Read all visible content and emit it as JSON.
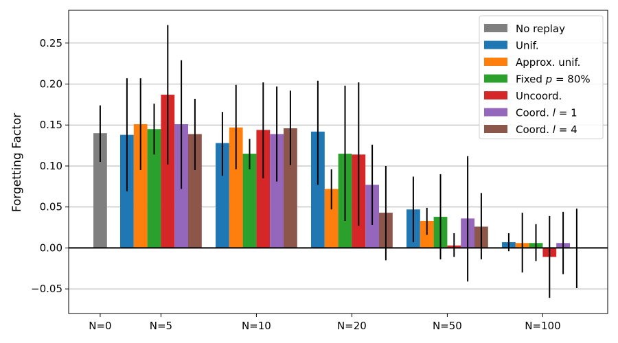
{
  "chart_data": {
    "type": "bar",
    "ylabel": "Forgetting Factor",
    "xlabel": "",
    "ylim": [
      -0.08,
      0.29
    ],
    "yticks": [
      -0.05,
      0.0,
      0.05,
      0.1,
      0.15,
      0.2,
      0.25
    ],
    "ytick_labels": [
      "−0.05",
      "0.00",
      "0.05",
      "0.10",
      "0.15",
      "0.20",
      "0.25"
    ],
    "grid": "horizontal",
    "zero_line": true,
    "legend_position": "top-right",
    "categories": [
      "N=0",
      "N=5",
      "N=10",
      "N=20",
      "N=50",
      "N=100"
    ],
    "series": [
      {
        "name": "No replay",
        "color": "#7f7f7f",
        "values": [
          0.14,
          null,
          null,
          null,
          null,
          null
        ],
        "err_low": [
          0.105,
          null,
          null,
          null,
          null,
          null
        ],
        "err_high": [
          0.174,
          null,
          null,
          null,
          null,
          null
        ]
      },
      {
        "name": "Unif.",
        "color": "#1f77b4",
        "values": [
          null,
          0.138,
          0.128,
          0.142,
          0.047,
          0.007
        ],
        "err_low": [
          null,
          0.069,
          0.088,
          0.077,
          0.007,
          -0.004
        ],
        "err_high": [
          null,
          0.207,
          0.166,
          0.204,
          0.087,
          0.018
        ]
      },
      {
        "name": "Approx. unif.",
        "color": "#ff7f0e",
        "values": [
          null,
          0.151,
          0.147,
          0.072,
          0.033,
          0.006
        ],
        "err_low": [
          null,
          0.095,
          0.096,
          0.047,
          0.016,
          -0.03
        ],
        "err_high": [
          null,
          0.207,
          0.199,
          0.096,
          0.049,
          0.043
        ]
      },
      {
        "name": "Fixed p = 80%",
        "color": "#2ca02c",
        "values": [
          null,
          0.145,
          0.115,
          0.115,
          0.038,
          0.006
        ],
        "err_low": [
          null,
          0.114,
          0.096,
          0.033,
          -0.014,
          -0.016
        ],
        "err_high": [
          null,
          0.176,
          0.133,
          0.198,
          0.09,
          0.029
        ]
      },
      {
        "name": "Uncoord.",
        "color": "#d62728",
        "values": [
          null,
          0.187,
          0.144,
          0.114,
          0.003,
          -0.011
        ],
        "err_low": [
          null,
          0.102,
          0.085,
          0.027,
          -0.011,
          -0.061
        ],
        "err_high": [
          null,
          0.272,
          0.202,
          0.202,
          0.018,
          0.039
        ]
      },
      {
        "name": "Coord. l = 1",
        "color": "#9467bd",
        "values": [
          null,
          0.151,
          0.139,
          0.077,
          0.036,
          0.006
        ],
        "err_low": [
          null,
          0.072,
          0.081,
          0.028,
          -0.041,
          -0.032
        ],
        "err_high": [
          null,
          0.229,
          0.197,
          0.126,
          0.112,
          0.044
        ]
      },
      {
        "name": "Coord. l = 4",
        "color": "#8c564b",
        "values": [
          null,
          0.139,
          0.146,
          0.043,
          0.026,
          0.0
        ],
        "err_low": [
          null,
          0.095,
          0.101,
          -0.015,
          -0.014,
          -0.049
        ],
        "err_high": [
          null,
          0.182,
          0.192,
          0.1,
          0.067,
          0.048
        ]
      }
    ],
    "legend": [
      {
        "text": "No replay",
        "color": "#7f7f7f"
      },
      {
        "text": "Unif.",
        "color": "#1f77b4"
      },
      {
        "text": "Approx. unif.",
        "color": "#ff7f0e"
      },
      {
        "text": "Fixed p = 80%",
        "color": "#2ca02c"
      },
      {
        "text": "Uncoord.",
        "color": "#d62728"
      },
      {
        "text": "Coord. l = 1",
        "color": "#9467bd"
      },
      {
        "text": "Coord. l = 4",
        "color": "#8c564b"
      }
    ]
  }
}
